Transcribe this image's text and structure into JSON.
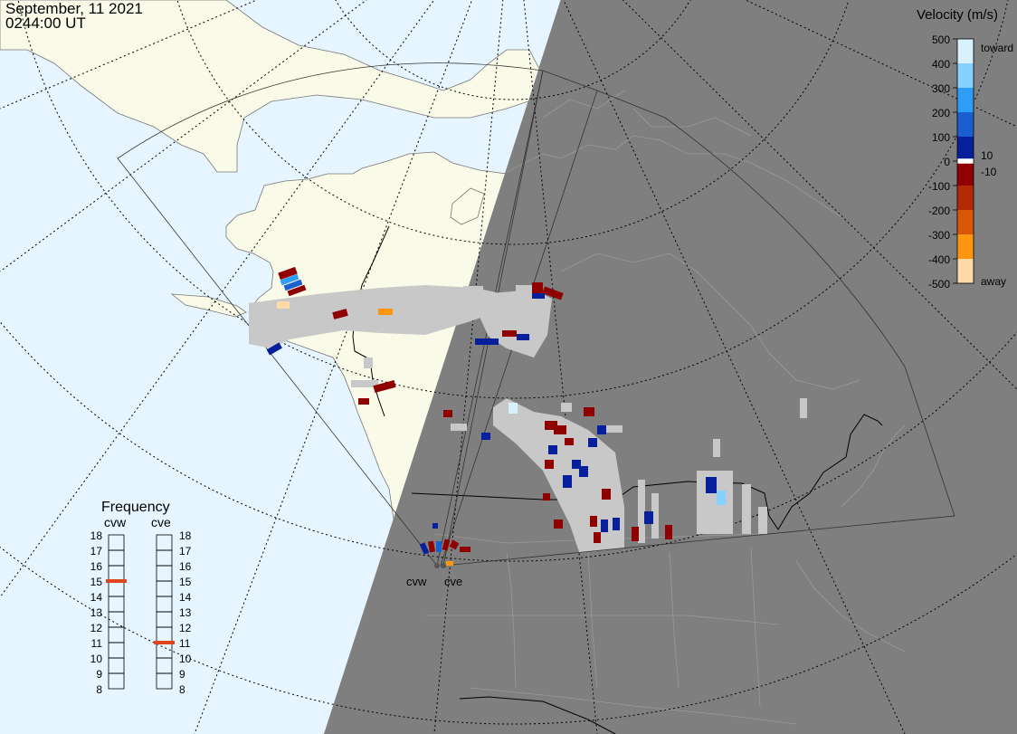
{
  "timestamp": {
    "date": "September, 11 2021",
    "time": "0244:00 UT"
  },
  "colors": {
    "ocean": "#e6f5ff",
    "land": "#fafae8",
    "night": "#7f7f7f",
    "ground_scatter": "#c8c8c8",
    "grid_line": "#000000"
  },
  "velocity_legend": {
    "title": "Velocity (m/s)",
    "ticks": [
      "500",
      "400",
      "300",
      "200",
      "100",
      "0",
      "-100",
      "-200",
      "-300",
      "-400",
      "-500"
    ],
    "toward_label": "toward",
    "away_label": "away",
    "thresholds": [
      "10",
      "-10"
    ],
    "scale": [
      {
        "from": 500,
        "to": 400,
        "color": "#d9f1ff"
      },
      {
        "from": 400,
        "to": 300,
        "color": "#86d1ff"
      },
      {
        "from": 300,
        "to": 200,
        "color": "#2f9df8"
      },
      {
        "from": 200,
        "to": 100,
        "color": "#1a5fd0"
      },
      {
        "from": 100,
        "to": 10,
        "color": "#071f9a"
      },
      {
        "from": -10,
        "to": -100,
        "color": "#8f0000"
      },
      {
        "from": -100,
        "to": -200,
        "color": "#b22b05"
      },
      {
        "from": -200,
        "to": -300,
        "color": "#d95608"
      },
      {
        "from": -300,
        "to": -400,
        "color": "#ff9610"
      },
      {
        "from": -400,
        "to": -500,
        "color": "#ffd9a8"
      }
    ]
  },
  "frequency_panel": {
    "title": "Frequency",
    "radars": [
      {
        "code": "cvw",
        "frequency_mhz": 15
      },
      {
        "code": "cve",
        "frequency_mhz": 11
      }
    ],
    "ticks": [
      "18",
      "17",
      "16",
      "15",
      "14",
      "13",
      "12",
      "11",
      "10",
      "9",
      "8"
    ],
    "marker_color": "#e0461d"
  },
  "radar_sites": [
    {
      "code": "cvw"
    },
    {
      "code": "cve"
    }
  ]
}
